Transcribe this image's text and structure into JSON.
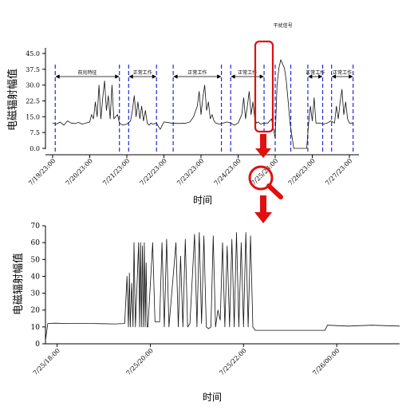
{
  "chart_data": [
    {
      "type": "line",
      "ylabel": "电磁辐射幅值",
      "xlabel": "时间",
      "ylim": [
        0,
        45
      ],
      "yticks": [
        "0.0",
        "7.5",
        "15.0",
        "22.5",
        "30.0",
        "37.5",
        "45.0"
      ],
      "xticks": [
        "7/19/23:00",
        "7/20/23:00",
        "7/21/23:00",
        "7/22/23:00",
        "7/23/23:00",
        "7/24/23:00",
        "7/25/23:00",
        "7/26/23:00",
        "7/27/23:00"
      ],
      "xrange_days": [
        0,
        8.3
      ],
      "segments": [
        {
          "label": "前兆特征",
          "start": 0.07,
          "end": 1.8
        },
        {
          "label": "正常工作",
          "start": 2.05,
          "end": 2.8
        },
        {
          "label": "正常工作",
          "start": 3.25,
          "end": 4.55
        },
        {
          "label": "正常工作",
          "start": 4.8,
          "end": 5.7
        },
        {
          "label": "干扰信号",
          "start": 6.0,
          "end": 6.42
        },
        {
          "label": "正常工作",
          "start": 6.88,
          "end": 7.28
        },
        {
          "label": "正常工作",
          "start": 7.52,
          "end": 8.1
        }
      ],
      "series": [
        {
          "x": [
            0,
            0.1,
            0.2,
            0.3,
            0.4,
            0.5,
            0.6,
            0.7,
            0.8,
            0.9,
            1.0,
            1.05,
            1.1,
            1.15,
            1.2,
            1.25,
            1.3,
            1.35,
            1.4,
            1.45,
            1.5,
            1.55,
            1.6,
            1.65,
            1.7,
            1.75,
            1.8,
            1.9,
            2.0,
            2.1,
            2.15,
            2.2,
            2.25,
            2.3,
            2.35,
            2.4,
            2.45,
            2.5,
            2.55,
            2.6,
            2.65,
            2.7,
            2.8,
            2.9,
            3.0,
            3.2,
            3.4,
            3.6,
            3.7,
            3.8,
            3.9,
            3.95,
            4.0,
            4.05,
            4.1,
            4.15,
            4.2,
            4.25,
            4.3,
            4.35,
            4.4,
            4.5,
            4.6,
            4.7,
            4.8,
            4.9,
            5.0,
            5.1,
            5.15,
            5.2,
            5.25,
            5.3,
            5.35,
            5.4,
            5.45,
            5.5,
            5.55,
            5.6,
            5.7,
            5.8,
            5.9,
            6.0,
            6.05,
            6.1,
            6.15,
            6.2,
            6.25,
            6.3,
            6.35,
            6.4,
            6.45,
            6.5,
            6.6,
            6.7,
            6.8,
            6.85,
            6.9,
            6.95,
            7.0,
            7.05,
            7.1,
            7.2,
            7.3,
            7.4,
            7.5,
            7.6,
            7.65,
            7.7,
            7.75,
            7.8,
            7.85,
            7.9,
            7.95,
            8.0,
            8.1
          ],
          "y": [
            12,
            11.5,
            12.5,
            11,
            13,
            12,
            11.8,
            12.3,
            11.5,
            12,
            12.5,
            16,
            14,
            22,
            15,
            30,
            14,
            24,
            32,
            18,
            25,
            14,
            30,
            14,
            15,
            16,
            12,
            11,
            11.5,
            13,
            18,
            25,
            15,
            22,
            14,
            20,
            13,
            18,
            12,
            11,
            12,
            11.5,
            12,
            9,
            12.5,
            12,
            11.8,
            12,
            12.5,
            15,
            20,
            27,
            16,
            24,
            30,
            18,
            22,
            14,
            16,
            13,
            12,
            11.5,
            12,
            12.5,
            12,
            11,
            12,
            16,
            24,
            14,
            20,
            27,
            16,
            22,
            14,
            12,
            12.5,
            11.5,
            12,
            12,
            14,
            5,
            30,
            38,
            42,
            40,
            38,
            32,
            22,
            12,
            6,
            0,
            0,
            0,
            0,
            0,
            12,
            20,
            13,
            24,
            12,
            12,
            11.5,
            12,
            13,
            12,
            20,
            14,
            22,
            28,
            16,
            22,
            14,
            12,
            12
          ]
        }
      ]
    },
    {
      "type": "line",
      "ylabel": "电磁辐射幅值",
      "xlabel": "时间",
      "ylim": [
        0,
        70
      ],
      "yticks": [
        "0",
        "10",
        "20",
        "30",
        "40",
        "50",
        "60",
        "70"
      ],
      "xticks": [
        "7/25/18:00",
        "7/25/20:00",
        "7/25/22:00",
        "7/26/00:00"
      ],
      "xrange_hours": [
        0,
        7.6
      ],
      "series": [
        {
          "x": [
            0,
            0.05,
            0.2,
            0.5,
            1.0,
            1.5,
            1.7,
            1.75,
            1.78,
            1.8,
            1.82,
            1.85,
            1.88,
            1.9,
            1.93,
            2.0,
            2.02,
            2.04,
            2.06,
            2.08,
            2.1,
            2.12,
            2.14,
            2.16,
            2.18,
            2.2,
            2.3,
            2.35,
            2.4,
            2.45,
            2.5,
            2.55,
            2.6,
            2.65,
            2.8,
            2.85,
            2.9,
            2.95,
            3.0,
            3.05,
            3.1,
            3.2,
            3.25,
            3.3,
            3.35,
            3.4,
            3.45,
            3.5,
            3.55,
            3.6,
            3.65,
            3.7,
            3.75,
            3.8,
            3.85,
            3.9,
            3.95,
            4.0,
            4.05,
            4.1,
            4.15,
            4.2,
            4.25,
            4.3,
            4.35,
            4.4,
            4.45,
            4.5,
            4.55,
            4.6,
            4.65,
            4.7,
            4.75,
            4.8,
            5.0,
            5.5,
            6.0,
            6.05,
            6.5,
            7.0,
            7.6
          ],
          "y": [
            2,
            12,
            12.2,
            12,
            12,
            11.8,
            12,
            40,
            10,
            42,
            10,
            36,
            10,
            60,
            10,
            60,
            10,
            60,
            10,
            58,
            10,
            60,
            10,
            48,
            10,
            10,
            60,
            13,
            13,
            13,
            60,
            10,
            62,
            10,
            60,
            10,
            52,
            10,
            62,
            10,
            12,
            65,
            10,
            66,
            12,
            64,
            10,
            9,
            10,
            64,
            10,
            20,
            14,
            60,
            10,
            58,
            10,
            62,
            10,
            66,
            10,
            60,
            10,
            66,
            10,
            64,
            10,
            8,
            8,
            8,
            8,
            8,
            8,
            8,
            8,
            8,
            8,
            11,
            10.5,
            11,
            10.5
          ]
        }
      ]
    }
  ]
}
